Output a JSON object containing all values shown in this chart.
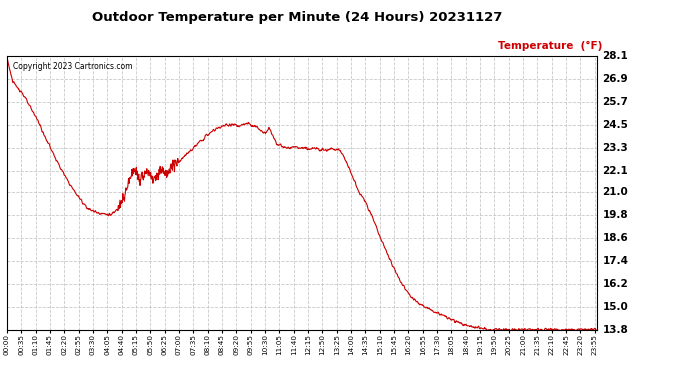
{
  "title": "Outdoor Temperature per Minute (24 Hours) 20231127",
  "copyright_text": "Copyright 2023 Cartronics.com",
  "legend_label": "Temperature  (°F)",
  "line_color": "#cc0000",
  "background_color": "#ffffff",
  "grid_color": "#bbbbbb",
  "y_min": 13.8,
  "y_max": 28.1,
  "y_ticks": [
    13.8,
    15.0,
    16.2,
    17.4,
    18.6,
    19.8,
    21.0,
    22.1,
    23.3,
    24.5,
    25.7,
    26.9,
    28.1
  ],
  "x_tick_labels": [
    "00:00",
    "00:35",
    "01:10",
    "01:45",
    "02:20",
    "02:55",
    "03:30",
    "04:05",
    "04:40",
    "05:15",
    "05:50",
    "06:25",
    "07:00",
    "07:35",
    "08:10",
    "08:45",
    "09:20",
    "09:55",
    "10:30",
    "11:05",
    "11:40",
    "12:15",
    "12:50",
    "13:25",
    "14:00",
    "14:35",
    "15:10",
    "15:45",
    "16:20",
    "16:55",
    "17:30",
    "18:05",
    "18:40",
    "19:15",
    "19:50",
    "20:25",
    "21:00",
    "21:35",
    "22:10",
    "22:45",
    "23:20",
    "23:55"
  ],
  "temperature_keypoints": [
    [
      0,
      28.05
    ],
    [
      5,
      27.6
    ],
    [
      15,
      26.7
    ],
    [
      25,
      26.5
    ],
    [
      30,
      26.4
    ],
    [
      40,
      26.1
    ],
    [
      50,
      25.7
    ],
    [
      60,
      25.3
    ],
    [
      75,
      24.8
    ],
    [
      90,
      24.0
    ],
    [
      105,
      23.4
    ],
    [
      120,
      22.7
    ],
    [
      140,
      21.9
    ],
    [
      160,
      21.2
    ],
    [
      180,
      20.6
    ],
    [
      200,
      20.1
    ],
    [
      220,
      19.95
    ],
    [
      240,
      19.85
    ],
    [
      255,
      19.82
    ],
    [
      270,
      20.1
    ],
    [
      285,
      20.7
    ],
    [
      295,
      21.3
    ],
    [
      305,
      21.9
    ],
    [
      315,
      22.15
    ],
    [
      320,
      21.85
    ],
    [
      325,
      21.6
    ],
    [
      330,
      21.75
    ],
    [
      335,
      22.0
    ],
    [
      340,
      22.2
    ],
    [
      345,
      22.1
    ],
    [
      350,
      21.85
    ],
    [
      360,
      21.7
    ],
    [
      365,
      21.8
    ],
    [
      370,
      22.0
    ],
    [
      375,
      22.2
    ],
    [
      380,
      22.1
    ],
    [
      390,
      22.0
    ],
    [
      400,
      22.3
    ],
    [
      410,
      22.5
    ],
    [
      420,
      22.6
    ],
    [
      430,
      22.8
    ],
    [
      450,
      23.2
    ],
    [
      470,
      23.6
    ],
    [
      490,
      24.0
    ],
    [
      510,
      24.3
    ],
    [
      525,
      24.45
    ],
    [
      540,
      24.5
    ],
    [
      550,
      24.55
    ],
    [
      560,
      24.5
    ],
    [
      565,
      24.4
    ],
    [
      570,
      24.45
    ],
    [
      575,
      24.5
    ],
    [
      580,
      24.55
    ],
    [
      585,
      24.6
    ],
    [
      590,
      24.55
    ],
    [
      595,
      24.5
    ],
    [
      600,
      24.45
    ],
    [
      610,
      24.4
    ],
    [
      620,
      24.2
    ],
    [
      630,
      24.1
    ],
    [
      640,
      24.35
    ],
    [
      645,
      24.15
    ],
    [
      650,
      23.9
    ],
    [
      660,
      23.5
    ],
    [
      670,
      23.4
    ],
    [
      680,
      23.3
    ],
    [
      700,
      23.35
    ],
    [
      720,
      23.3
    ],
    [
      740,
      23.25
    ],
    [
      760,
      23.3
    ],
    [
      770,
      23.25
    ],
    [
      780,
      23.2
    ],
    [
      790,
      23.3
    ],
    [
      800,
      23.25
    ],
    [
      810,
      23.2
    ],
    [
      820,
      23.0
    ],
    [
      830,
      22.5
    ],
    [
      840,
      22.0
    ],
    [
      850,
      21.5
    ],
    [
      860,
      21.0
    ],
    [
      875,
      20.5
    ],
    [
      890,
      19.8
    ],
    [
      905,
      19.0
    ],
    [
      920,
      18.2
    ],
    [
      935,
      17.5
    ],
    [
      950,
      16.8
    ],
    [
      965,
      16.2
    ],
    [
      980,
      15.7
    ],
    [
      1000,
      15.3
    ],
    [
      1020,
      15.0
    ],
    [
      1040,
      14.8
    ],
    [
      1060,
      14.6
    ],
    [
      1080,
      14.4
    ],
    [
      1100,
      14.2
    ],
    [
      1120,
      14.05
    ],
    [
      1140,
      13.95
    ],
    [
      1160,
      13.88
    ],
    [
      1175,
      13.82
    ],
    [
      1200,
      13.82
    ],
    [
      1220,
      13.82
    ],
    [
      1240,
      13.82
    ],
    [
      1260,
      13.82
    ],
    [
      1280,
      13.82
    ],
    [
      1300,
      13.82
    ],
    [
      1320,
      13.82
    ],
    [
      1340,
      13.82
    ],
    [
      1360,
      13.82
    ],
    [
      1380,
      13.82
    ],
    [
      1400,
      13.82
    ],
    [
      1420,
      13.82
    ],
    [
      1440,
      13.82
    ]
  ]
}
